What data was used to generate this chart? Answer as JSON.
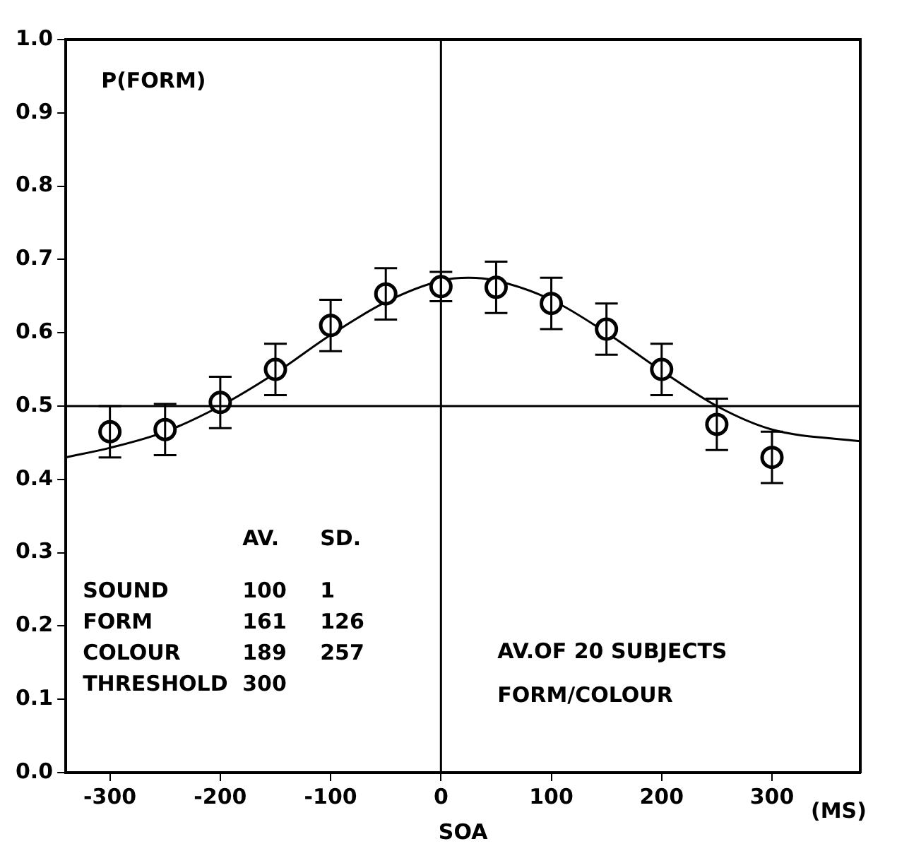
{
  "chart_data": {
    "type": "scatter",
    "xlabel": "SOA",
    "x": [
      -300,
      -250,
      -200,
      -150,
      -100,
      -50,
      0,
      50,
      100,
      150,
      200,
      250,
      300
    ],
    "series": [
      {
        "color": "#000000",
        "marker": "circle",
        "values": [
          0.465,
          0.468,
          0.505,
          0.55,
          0.61,
          0.653,
          0.663,
          0.662,
          0.64,
          0.605,
          0.55,
          0.475,
          0.43
        ],
        "errors": [
          0.035,
          0.035,
          0.035,
          0.035,
          0.035,
          0.035,
          0.02,
          0.035,
          0.035,
          0.035,
          0.035,
          0.035,
          0.035
        ]
      },
      {
        "type": "line",
        "color": "#000000",
        "marker": "none",
        "x": [
          -340,
          -300,
          -250,
          -200,
          -150,
          -100,
          -50,
          0,
          25,
          50,
          100,
          150,
          200,
          250,
          300,
          380
        ],
        "values": [
          0.43,
          0.443,
          0.465,
          0.5,
          0.545,
          0.597,
          0.642,
          0.671,
          0.675,
          0.671,
          0.645,
          0.6,
          0.548,
          0.5,
          0.468,
          0.452
        ]
      }
    ],
    "xlim": [
      -340,
      380
    ],
    "ylim": [
      0,
      1
    ],
    "xticks": [
      -300,
      -200,
      -100,
      0,
      100,
      200,
      300
    ],
    "yticks": [
      {
        "value": 0,
        "label": "0.0"
      },
      {
        "value": 0.1,
        "label": "0.1"
      },
      {
        "value": 0.2,
        "label": "0.2"
      },
      {
        "value": 0.3,
        "label": "0.3"
      },
      {
        "value": 0.4,
        "label": "0.4"
      },
      {
        "value": 0.5,
        "label": "0.5"
      },
      {
        "value": 0.6,
        "label": "0.6"
      },
      {
        "value": 0.7,
        "label": "0.7"
      },
      {
        "value": 0.8,
        "label": "0.8"
      },
      {
        "value": 0.9,
        "label": "0.9"
      },
      {
        "value": 1,
        "label": "1.0"
      }
    ],
    "ref_lines": [
      {
        "axis": "y",
        "value": 0.5
      },
      {
        "axis": "x",
        "value": 0
      }
    ],
    "grid": false,
    "legend": false,
    "annotations": [
      "P(FORM)",
      "AV. SD.",
      "SOUND 100 1",
      "FORM 161 126",
      "COLOUR 189 257",
      "THRESHOLD 300",
      "AV.OF 20 SUBJECTS",
      "FORM/COLOUR",
      "(MS)"
    ]
  }
}
